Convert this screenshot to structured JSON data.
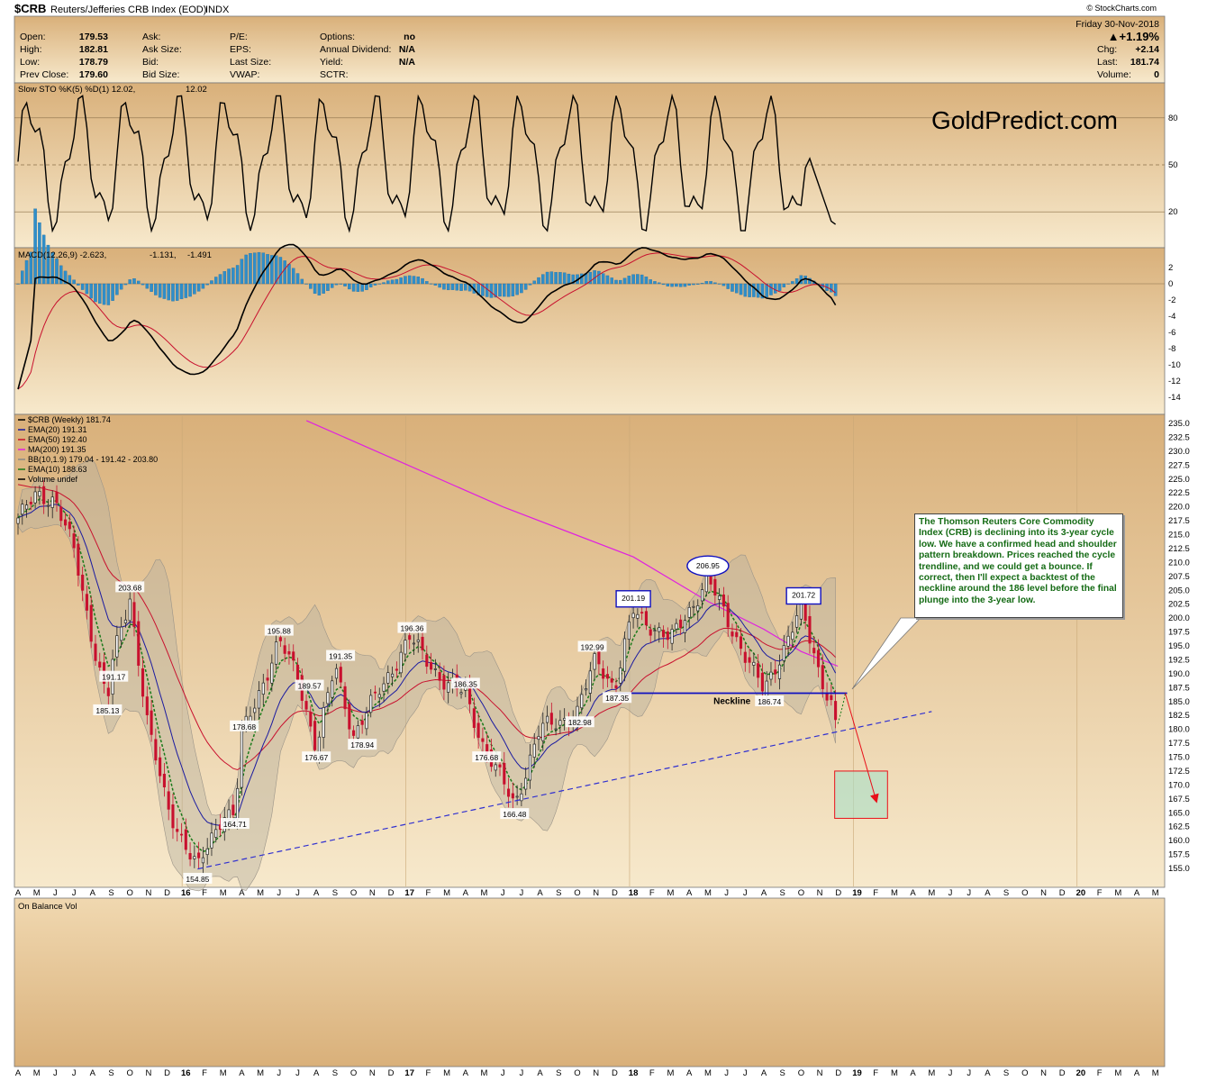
{
  "header": {
    "symbol": "$CRB",
    "name": "Reuters/Jefferies CRB Index (EOD)",
    "exchange": "INDX",
    "date": "Friday  30-Nov-2018",
    "change_pct": "▲+1.19%",
    "chg_label": "Chg:",
    "chg_value": "+2.14",
    "last_label": "Last:",
    "last_value": "181.74",
    "volume_label": "Volume:",
    "volume_value": "0",
    "credit": "© StockCharts.com",
    "quote": [
      {
        "label": "Open:",
        "value": "179.53"
      },
      {
        "label": "High:",
        "value": "182.81"
      },
      {
        "label": "Low:",
        "value": "178.79"
      },
      {
        "label": "Prev Close:",
        "value": "179.60"
      }
    ],
    "mid1": [
      "Ask:",
      "Ask Size:",
      "Bid:",
      "Bid Size:"
    ],
    "mid2": [
      "P/E:",
      "EPS:",
      "Last Size:",
      "VWAP:"
    ],
    "mid3": [
      {
        "label": "Options:",
        "value": "no"
      },
      {
        "label": "Annual Dividend:",
        "value": "N/A"
      },
      {
        "label": "Yield:",
        "value": "N/A"
      },
      {
        "label": "SCTR:",
        "value": ""
      }
    ]
  },
  "watermark": "GoldPredict.com",
  "colors": {
    "panel": "#e8c99a",
    "candle_up": "#222222",
    "candle_down": "#c8102e",
    "ema20": "#1a1aa0",
    "ema50": "#c8102e",
    "ma200": "#e020e0",
    "ema10": "#1a7a1a",
    "neckline": "#1010c0",
    "trendline": "#3030d0",
    "macd_hist": "#2f8ec9"
  },
  "sto": {
    "title_prefix": "Slow STO %K(5) %D(1) 12.02,",
    "title_value": "12.02",
    "ticks": [
      "80",
      "50",
      "20"
    ]
  },
  "macd": {
    "title_prefix": "MACD(12,26,9) -2.623,",
    "signal_value": "-1.131,",
    "hist_value": "-1.491",
    "ticks": [
      "2",
      "0",
      "-2",
      "-4",
      "-6",
      "-8",
      "-10",
      "-12",
      "-14"
    ]
  },
  "price_legend": [
    {
      "text": "$CRB (Weekly) 181.74",
      "color": "#000000"
    },
    {
      "text": "EMA(20) 191.31",
      "color": "#1a1aa0"
    },
    {
      "text": "EMA(50) 192.40",
      "color": "#c8102e"
    },
    {
      "text": "MA(200) 191.35",
      "color": "#e020e0"
    },
    {
      "text": "BB(10,1.9) 179.04 - 191.42 - 203.80",
      "color": "#888888"
    },
    {
      "text": "EMA(10) 188.63",
      "color": "#1a7a1a"
    },
    {
      "text": "Volume undef",
      "color": "#000000"
    }
  ],
  "price_ticks": [
    "235.0",
    "232.5",
    "230.0",
    "227.5",
    "225.0",
    "222.5",
    "220.0",
    "217.5",
    "215.0",
    "212.5",
    "210.0",
    "207.5",
    "205.0",
    "202.5",
    "200.0",
    "197.5",
    "195.0",
    "192.5",
    "190.0",
    "187.5",
    "185.0",
    "182.5",
    "180.0",
    "177.5",
    "175.0",
    "172.5",
    "170.0",
    "167.5",
    "165.0",
    "162.5",
    "160.0",
    "157.5",
    "155.0"
  ],
  "months": [
    "A",
    "M",
    "J",
    "J",
    "A",
    "S",
    "O",
    "N",
    "D",
    "16",
    "F",
    "M",
    "A",
    "M",
    "J",
    "J",
    "A",
    "S",
    "O",
    "N",
    "D",
    "17",
    "F",
    "M",
    "A",
    "M",
    "J",
    "J",
    "A",
    "S",
    "O",
    "N",
    "D",
    "18",
    "F",
    "M",
    "A",
    "M",
    "J",
    "J",
    "A",
    "S",
    "O",
    "N",
    "D",
    "19",
    "F",
    "M",
    "A",
    "M",
    "J",
    "J",
    "A",
    "S",
    "O",
    "N",
    "D",
    "20",
    "F",
    "M",
    "A",
    "M"
  ],
  "obv_title": "On Balance Vol",
  "neckline_label": "Neckline",
  "annotation": "The Thomson Reuters Core Commodity Index (CRB) is declining into its 3-year cycle low. We have a confirmed head and shoulder pattern breakdown. Prices reached the cycle trendline, and we could get a bounce. If correct, then I'll expect a backtest of the neckline around the 186 level before the final plunge into the 3-year low.",
  "chart_data": {
    "type": "line",
    "title": "$CRB Reuters/Jefferies CRB Index (EOD) INDX",
    "interval": "Weekly",
    "price": {
      "points": [
        {
          "date": "2015-04",
          "value": 218.0
        },
        {
          "date": "2015-05",
          "value": 222.0
        },
        {
          "date": "2015-06",
          "value": 221.5
        },
        {
          "date": "2015-07",
          "value": 212.0
        },
        {
          "date": "2015-08",
          "value": 196.0
        },
        {
          "date": "2015-08-25",
          "value": 185.13
        },
        {
          "date": "2015-09",
          "value": 191.17
        },
        {
          "date": "2015-10",
          "value": 203.68
        },
        {
          "date": "2015-11",
          "value": 180.0
        },
        {
          "date": "2015-12",
          "value": 166.0
        },
        {
          "date": "2016-01-20",
          "value": 154.85
        },
        {
          "date": "2016-03",
          "value": 165.0
        },
        {
          "date": "2016-03-20",
          "value": 164.71
        },
        {
          "date": "2016-04",
          "value": 178.68
        },
        {
          "date": "2016-06",
          "value": 195.88
        },
        {
          "date": "2016-07",
          "value": 189.57
        },
        {
          "date": "2016-08",
          "value": 176.67
        },
        {
          "date": "2016-09",
          "value": 191.35
        },
        {
          "date": "2016-10",
          "value": 178.94
        },
        {
          "date": "2017-01",
          "value": 196.36
        },
        {
          "date": "2017-03",
          "value": 188.0
        },
        {
          "date": "2017-04",
          "value": 186.35
        },
        {
          "date": "2017-05",
          "value": 176.68
        },
        {
          "date": "2017-06-20",
          "value": 166.48
        },
        {
          "date": "2017-08",
          "value": 180.0
        },
        {
          "date": "2017-10",
          "value": 182.98
        },
        {
          "date": "2017-11",
          "value": 192.99
        },
        {
          "date": "2017-12",
          "value": 187.35
        },
        {
          "date": "2018-01",
          "value": 201.19
        },
        {
          "date": "2018-03",
          "value": 196.0
        },
        {
          "date": "2018-05",
          "value": 206.95
        },
        {
          "date": "2018-06",
          "value": 200.0
        },
        {
          "date": "2018-08",
          "value": 186.74
        },
        {
          "date": "2018-10",
          "value": 201.72
        },
        {
          "date": "2018-11",
          "value": 190.0
        },
        {
          "date": "2018-11-30",
          "value": 181.74
        }
      ],
      "labels": [
        "185.13",
        "191.17",
        "203.68",
        "154.85",
        "164.71",
        "178.68",
        "195.88",
        "189.57",
        "176.67",
        "191.35",
        "178.94",
        "196.36",
        "186.35",
        "176.68",
        "166.48",
        "182.98",
        "192.99",
        "187.35",
        "201.19",
        "206.95",
        "186.74",
        "201.72"
      ],
      "ylim": [
        153.5,
        236.0
      ],
      "xlim": [
        "2015-04",
        "2020-05"
      ],
      "neckline": 186.5,
      "target_box": [
        164.0,
        172.5
      ],
      "indicators": {
        "EMA(20)": 191.31,
        "EMA(50)": 192.4,
        "MA(200)": 191.35,
        "EMA(10)": 188.63,
        "BB(10,1.9)": [
          179.04,
          191.42,
          203.8
        ]
      }
    },
    "slow_sto": {
      "k": 12.02,
      "d": 12.02,
      "ylim": [
        0,
        100
      ],
      "levels": [
        80,
        50,
        20
      ]
    },
    "macd": {
      "macd": -2.623,
      "signal": -1.131,
      "histogram": -1.491,
      "ylim": [
        -15,
        5
      ]
    }
  }
}
